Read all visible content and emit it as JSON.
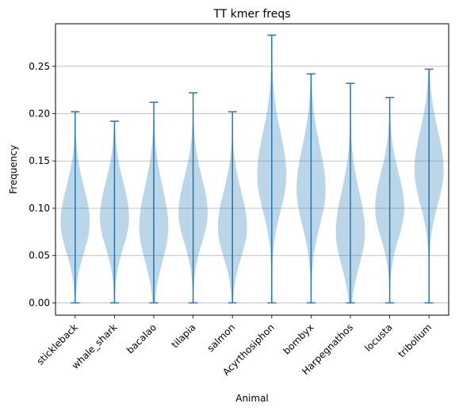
{
  "chart_data": {
    "type": "violin",
    "title": "TT kmer freqs",
    "xlabel": "Animal",
    "ylabel": "Frequency",
    "ylim": [
      -0.013,
      0.295
    ],
    "yticks": [
      "0.00",
      "0.05",
      "0.10",
      "0.15",
      "0.20",
      "0.25"
    ],
    "grid": "horizontal",
    "colors": {
      "body": "#1f77b4",
      "body_opacity": 0.3,
      "line": "#1f77b4",
      "grid": "#b0b0b0"
    },
    "categories": [
      "stickleback",
      "whale_shark",
      "bacalao",
      "tilapia",
      "salmon",
      "Acyrthosiphon",
      "bombyx",
      "Harpegnathos",
      "locusta",
      "tribolium"
    ],
    "violins": [
      {
        "name": "stickleback",
        "min": 0.0,
        "max": 0.202,
        "mode": 0.085,
        "spread": 0.03
      },
      {
        "name": "whale_shark",
        "min": 0.0,
        "max": 0.192,
        "mode": 0.09,
        "spread": 0.03
      },
      {
        "name": "bacalao",
        "min": 0.0,
        "max": 0.212,
        "mode": 0.08,
        "spread": 0.034
      },
      {
        "name": "tilapia",
        "min": 0.0,
        "max": 0.222,
        "mode": 0.095,
        "spread": 0.03
      },
      {
        "name": "salmon",
        "min": 0.0,
        "max": 0.202,
        "mode": 0.08,
        "spread": 0.03
      },
      {
        "name": "Acyrthosiphon",
        "min": 0.0,
        "max": 0.283,
        "mode": 0.135,
        "spread": 0.036
      },
      {
        "name": "bombyx",
        "min": 0.0,
        "max": 0.242,
        "mode": 0.12,
        "spread": 0.036
      },
      {
        "name": "Harpegnathos",
        "min": 0.0,
        "max": 0.232,
        "mode": 0.075,
        "spread": 0.034
      },
      {
        "name": "locusta",
        "min": 0.0,
        "max": 0.217,
        "mode": 0.1,
        "spread": 0.03
      },
      {
        "name": "tribolium",
        "min": 0.0,
        "max": 0.247,
        "mode": 0.14,
        "spread": 0.034
      }
    ]
  }
}
